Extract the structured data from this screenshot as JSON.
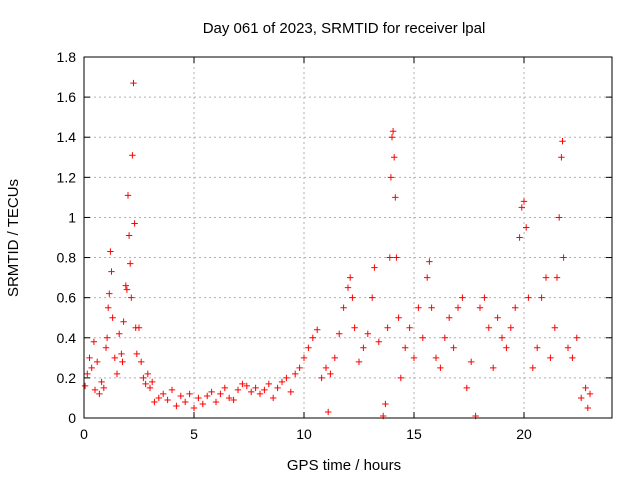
{
  "chart_data": {
    "type": "scatter",
    "title": "Day 061 of 2023, SRMTID for receiver lpal",
    "xlabel": "GPS time / hours",
    "ylabel": "SRMTID / TECUs",
    "xlim": [
      0,
      24
    ],
    "ylim": [
      0,
      1.8
    ],
    "xticks": [
      0,
      5,
      10,
      15,
      20
    ],
    "xtick_labels": [
      "0",
      "5",
      "10",
      "15",
      "20"
    ],
    "yticks": [
      0,
      0.2,
      0.4,
      0.6,
      0.8,
      1.0,
      1.2,
      1.4,
      1.6,
      1.8
    ],
    "ytick_labels": [
      "0",
      "0.2",
      "0.4",
      "0.6",
      "0.8",
      "1",
      "1.2",
      "1.4",
      "1.6",
      "1.8"
    ],
    "grid": true,
    "marker": "+",
    "color": "#ff0000",
    "series": [
      {
        "name": "SRMTID",
        "points": [
          [
            0.05,
            0.16
          ],
          [
            0.15,
            0.22
          ],
          [
            0.25,
            0.3
          ],
          [
            0.35,
            0.25
          ],
          [
            0.45,
            0.38
          ],
          [
            0.5,
            0.14
          ],
          [
            0.6,
            0.28
          ],
          [
            0.7,
            0.12
          ],
          [
            0.8,
            0.18
          ],
          [
            0.9,
            0.15
          ],
          [
            1.0,
            0.35
          ],
          [
            1.05,
            0.4
          ],
          [
            1.1,
            0.55
          ],
          [
            1.15,
            0.62
          ],
          [
            1.2,
            0.83
          ],
          [
            1.25,
            0.73
          ],
          [
            1.3,
            0.5
          ],
          [
            1.4,
            0.3
          ],
          [
            1.5,
            0.22
          ],
          [
            1.6,
            0.42
          ],
          [
            1.7,
            0.32
          ],
          [
            1.75,
            0.28
          ],
          [
            1.8,
            0.48
          ],
          [
            1.9,
            0.66
          ],
          [
            1.95,
            0.64
          ],
          [
            2.0,
            1.11
          ],
          [
            2.05,
            0.91
          ],
          [
            2.1,
            0.77
          ],
          [
            2.15,
            0.6
          ],
          [
            2.2,
            1.31
          ],
          [
            2.25,
            1.67
          ],
          [
            2.3,
            0.97
          ],
          [
            2.35,
            0.45
          ],
          [
            2.4,
            0.32
          ],
          [
            2.5,
            0.45
          ],
          [
            2.6,
            0.28
          ],
          [
            2.7,
            0.2
          ],
          [
            2.8,
            0.17
          ],
          [
            2.9,
            0.22
          ],
          [
            3.0,
            0.15
          ],
          [
            3.1,
            0.18
          ],
          [
            3.2,
            0.08
          ],
          [
            3.4,
            0.1
          ],
          [
            3.6,
            0.12
          ],
          [
            3.8,
            0.09
          ],
          [
            4.0,
            0.14
          ],
          [
            4.2,
            0.06
          ],
          [
            4.4,
            0.11
          ],
          [
            4.6,
            0.08
          ],
          [
            4.8,
            0.12
          ],
          [
            5.0,
            0.05
          ],
          [
            5.2,
            0.1
          ],
          [
            5.4,
            0.07
          ],
          [
            5.6,
            0.11
          ],
          [
            5.8,
            0.13
          ],
          [
            6.0,
            0.08
          ],
          [
            6.2,
            0.12
          ],
          [
            6.4,
            0.15
          ],
          [
            6.6,
            0.1
          ],
          [
            6.8,
            0.09
          ],
          [
            7.0,
            0.14
          ],
          [
            7.2,
            0.17
          ],
          [
            7.4,
            0.16
          ],
          [
            7.6,
            0.13
          ],
          [
            7.8,
            0.15
          ],
          [
            8.0,
            0.12
          ],
          [
            8.2,
            0.14
          ],
          [
            8.4,
            0.17
          ],
          [
            8.6,
            0.1
          ],
          [
            8.8,
            0.15
          ],
          [
            9.0,
            0.18
          ],
          [
            9.2,
            0.2
          ],
          [
            9.4,
            0.13
          ],
          [
            9.6,
            0.22
          ],
          [
            9.8,
            0.25
          ],
          [
            10.0,
            0.3
          ],
          [
            10.2,
            0.35
          ],
          [
            10.4,
            0.4
          ],
          [
            10.6,
            0.44
          ],
          [
            10.8,
            0.2
          ],
          [
            11.0,
            0.25
          ],
          [
            11.1,
            0.03
          ],
          [
            11.2,
            0.22
          ],
          [
            11.4,
            0.3
          ],
          [
            11.6,
            0.42
          ],
          [
            11.8,
            0.55
          ],
          [
            12.0,
            0.65
          ],
          [
            12.1,
            0.7
          ],
          [
            12.2,
            0.6
          ],
          [
            12.3,
            0.45
          ],
          [
            12.5,
            0.28
          ],
          [
            12.7,
            0.35
          ],
          [
            12.9,
            0.42
          ],
          [
            13.1,
            0.6
          ],
          [
            13.2,
            0.75
          ],
          [
            13.4,
            0.38
          ],
          [
            13.6,
            0.01
          ],
          [
            13.7,
            0.07
          ],
          [
            13.8,
            0.45
          ],
          [
            13.9,
            0.8
          ],
          [
            13.95,
            1.2
          ],
          [
            14.0,
            1.4
          ],
          [
            14.05,
            1.43
          ],
          [
            14.1,
            1.3
          ],
          [
            14.15,
            1.1
          ],
          [
            14.2,
            0.8
          ],
          [
            14.3,
            0.5
          ],
          [
            14.4,
            0.2
          ],
          [
            14.6,
            0.35
          ],
          [
            14.8,
            0.45
          ],
          [
            15.0,
            0.3
          ],
          [
            15.2,
            0.55
          ],
          [
            15.4,
            0.4
          ],
          [
            15.6,
            0.7
          ],
          [
            15.7,
            0.78
          ],
          [
            15.8,
            0.55
          ],
          [
            16.0,
            0.3
          ],
          [
            16.2,
            0.25
          ],
          [
            16.4,
            0.4
          ],
          [
            16.6,
            0.5
          ],
          [
            16.8,
            0.35
          ],
          [
            17.0,
            0.55
          ],
          [
            17.2,
            0.6
          ],
          [
            17.4,
            0.15
          ],
          [
            17.6,
            0.28
          ],
          [
            17.8,
            0.01
          ],
          [
            18.0,
            0.55
          ],
          [
            18.2,
            0.6
          ],
          [
            18.4,
            0.45
          ],
          [
            18.6,
            0.25
          ],
          [
            18.8,
            0.5
          ],
          [
            19.0,
            0.4
          ],
          [
            19.2,
            0.35
          ],
          [
            19.4,
            0.45
          ],
          [
            19.6,
            0.55
          ],
          [
            19.8,
            0.9
          ],
          [
            19.9,
            1.05
          ],
          [
            20.0,
            1.08
          ],
          [
            20.1,
            0.95
          ],
          [
            20.2,
            0.6
          ],
          [
            20.4,
            0.25
          ],
          [
            20.6,
            0.35
          ],
          [
            20.8,
            0.6
          ],
          [
            21.0,
            0.7
          ],
          [
            21.2,
            0.3
          ],
          [
            21.4,
            0.45
          ],
          [
            21.5,
            0.7
          ],
          [
            21.6,
            1.0
          ],
          [
            21.7,
            1.3
          ],
          [
            21.75,
            1.38
          ],
          [
            21.8,
            0.8
          ],
          [
            22.0,
            0.35
          ],
          [
            22.2,
            0.3
          ],
          [
            22.4,
            0.4
          ],
          [
            22.6,
            0.1
          ],
          [
            22.8,
            0.15
          ],
          [
            22.9,
            0.05
          ],
          [
            23.0,
            0.12
          ]
        ]
      }
    ]
  }
}
